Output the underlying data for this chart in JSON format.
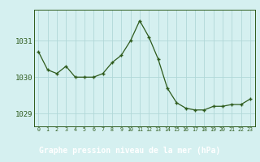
{
  "hours": [
    0,
    1,
    2,
    3,
    4,
    5,
    6,
    7,
    8,
    9,
    10,
    11,
    12,
    13,
    14,
    15,
    16,
    17,
    18,
    19,
    20,
    21,
    22,
    23
  ],
  "pressure": [
    1030.7,
    1030.2,
    1030.1,
    1030.3,
    1030.0,
    1030.0,
    1030.0,
    1030.1,
    1030.4,
    1030.6,
    1031.0,
    1031.55,
    1031.1,
    1030.5,
    1029.7,
    1029.3,
    1029.15,
    1029.1,
    1029.1,
    1029.2,
    1029.2,
    1029.25,
    1029.25,
    1029.4
  ],
  "ylim": [
    1028.65,
    1031.85
  ],
  "yticks": [
    1029,
    1030,
    1031
  ],
  "line_color": "#2d5a1b",
  "marker_color": "#2d5a1b",
  "bg_color": "#d5f0f0",
  "plot_bg": "#d5f0f0",
  "grid_color": "#b0d8d8",
  "footer_bg": "#3a7a2a",
  "footer_text": "Graphe pression niveau de la mer (hPa)",
  "footer_text_color": "#ffffff",
  "tick_color": "#2d5a1b",
  "spine_color": "#2d5a1b"
}
